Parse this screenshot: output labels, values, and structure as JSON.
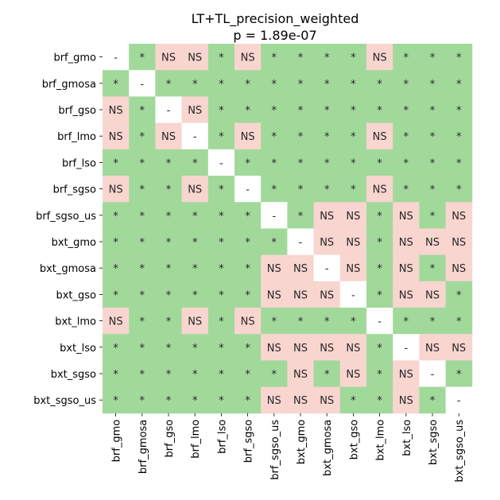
{
  "chart_data": {
    "type": "heatmap",
    "title": "LT+TL_precision_weighted",
    "subtitle": "p = 1.89e-07",
    "xlabel": "",
    "ylabel": "",
    "categories": [
      "brf_gmo",
      "brf_gmosa",
      "brf_gso",
      "brf_lmo",
      "brf_lso",
      "brf_sgso",
      "brf_sgso_us",
      "bxt_gmo",
      "bxt_gmosa",
      "bxt_gso",
      "bxt_lmo",
      "bxt_lso",
      "bxt_sgso",
      "bxt_sgso_us"
    ],
    "colors": {
      "significant": "#a1d99b",
      "not_significant": "#f9d5d0",
      "diagonal": "#ffffff"
    },
    "matrix": [
      [
        "-",
        "*",
        "NS",
        "NS",
        "*",
        "NS",
        "*",
        "*",
        "*",
        "*",
        "NS",
        "*",
        "*",
        "*"
      ],
      [
        "*",
        "-",
        "*",
        "*",
        "*",
        "*",
        "*",
        "*",
        "*",
        "*",
        "*",
        "*",
        "*",
        "*"
      ],
      [
        "NS",
        "*",
        "-",
        "NS",
        "*",
        "*",
        "*",
        "*",
        "*",
        "*",
        "*",
        "*",
        "*",
        "*"
      ],
      [
        "NS",
        "*",
        "NS",
        "-",
        "*",
        "NS",
        "*",
        "*",
        "*",
        "*",
        "NS",
        "*",
        "*",
        "*"
      ],
      [
        "*",
        "*",
        "*",
        "*",
        "-",
        "*",
        "*",
        "*",
        "*",
        "*",
        "*",
        "*",
        "*",
        "*"
      ],
      [
        "NS",
        "*",
        "*",
        "NS",
        "*",
        "-",
        "*",
        "*",
        "*",
        "*",
        "NS",
        "*",
        "*",
        "*"
      ],
      [
        "*",
        "*",
        "*",
        "*",
        "*",
        "*",
        "-",
        "*",
        "NS",
        "NS",
        "*",
        "NS",
        "*",
        "NS"
      ],
      [
        "*",
        "*",
        "*",
        "*",
        "*",
        "*",
        "*",
        "-",
        "NS",
        "NS",
        "*",
        "NS",
        "NS",
        "NS"
      ],
      [
        "*",
        "*",
        "*",
        "*",
        "*",
        "*",
        "NS",
        "NS",
        "-",
        "NS",
        "*",
        "NS",
        "*",
        "NS"
      ],
      [
        "*",
        "*",
        "*",
        "*",
        "*",
        "*",
        "NS",
        "NS",
        "NS",
        "-",
        "*",
        "NS",
        "NS",
        "*"
      ],
      [
        "NS",
        "*",
        "*",
        "NS",
        "*",
        "NS",
        "*",
        "*",
        "*",
        "*",
        "-",
        "*",
        "*",
        "*"
      ],
      [
        "*",
        "*",
        "*",
        "*",
        "*",
        "*",
        "NS",
        "NS",
        "NS",
        "NS",
        "*",
        "-",
        "NS",
        "NS"
      ],
      [
        "*",
        "*",
        "*",
        "*",
        "*",
        "*",
        "*",
        "NS",
        "*",
        "NS",
        "*",
        "NS",
        "-",
        "*"
      ],
      [
        "*",
        "*",
        "*",
        "*",
        "*",
        "*",
        "NS",
        "NS",
        "NS",
        "*",
        "*",
        "NS",
        "*",
        "-"
      ]
    ]
  }
}
